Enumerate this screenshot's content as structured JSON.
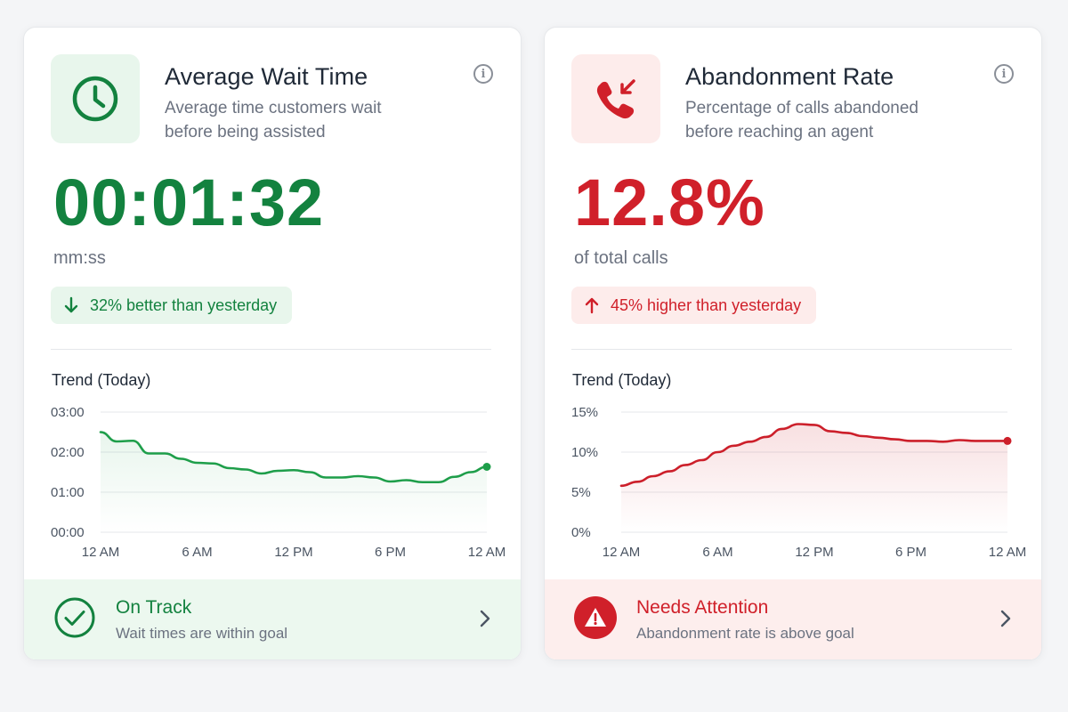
{
  "colors": {
    "green": "#13823f",
    "green_line": "#1e9e4a",
    "green_bg": "#e8f6ec",
    "red": "#d0202a",
    "red_line": "#cc1f2a",
    "red_bg": "#fdeceb"
  },
  "cards": [
    {
      "icon": "clock-icon",
      "title": "Average Wait Time",
      "subtitle": "Average time customers wait before being assisted",
      "value": "00:01:32",
      "unit": "mm:ss",
      "delta_icon": "arrow-down-icon",
      "delta_text": "32% better than yesterday",
      "trend_title": "Trend (Today)",
      "status_icon": "check-circle-icon",
      "status_title": "On Track",
      "status_sub": "Wait times are within goal"
    },
    {
      "icon": "phone-missed-icon",
      "title": "Abandonment Rate",
      "subtitle": "Percentage of calls abandoned before reaching an agent",
      "value": "12.8%",
      "unit": "of total calls",
      "delta_icon": "arrow-up-icon",
      "delta_text": "45% higher than yesterday",
      "trend_title": "Trend (Today)",
      "status_icon": "warning-icon",
      "status_title": "Needs Attention",
      "status_sub": "Abandonment rate is above goal"
    }
  ],
  "chart_data": [
    {
      "type": "line",
      "title": "Trend (Today)",
      "x_ticks": [
        "12 AM",
        "6 AM",
        "12 PM",
        "6 PM",
        "12 AM"
      ],
      "y_ticks": [
        "00:00",
        "01:00",
        "02:00",
        "03:00"
      ],
      "ylim": [
        0,
        180
      ],
      "x_hours": [
        0,
        1,
        2,
        3,
        4,
        5,
        6,
        7,
        8,
        9,
        10,
        11,
        12,
        13,
        14,
        15,
        16,
        17,
        18,
        19,
        20,
        21,
        22,
        23,
        24
      ],
      "values": [
        150,
        136,
        137,
        118,
        118,
        110,
        104,
        103,
        96,
        94,
        88,
        92,
        93,
        90,
        82,
        82,
        84,
        82,
        76,
        78,
        75,
        75,
        83,
        90,
        98
      ],
      "grid": true,
      "legend": "none"
    },
    {
      "type": "line",
      "title": "Trend (Today)",
      "x_ticks": [
        "12 AM",
        "6 AM",
        "12 PM",
        "6 PM",
        "12 AM"
      ],
      "y_ticks": [
        "0%",
        "5%",
        "10%",
        "15%"
      ],
      "ylim": [
        0,
        15
      ],
      "x_hours": [
        0,
        1,
        2,
        3,
        4,
        5,
        6,
        7,
        8,
        9,
        10,
        11,
        12,
        13,
        14,
        15,
        16,
        17,
        18,
        19,
        20,
        21,
        22,
        23,
        24
      ],
      "values": [
        5.8,
        6.3,
        7.0,
        7.6,
        8.4,
        9.0,
        10.0,
        10.8,
        11.3,
        11.9,
        12.9,
        13.5,
        13.4,
        12.6,
        12.4,
        12.0,
        11.8,
        11.6,
        11.4,
        11.4,
        11.3,
        11.5,
        11.4,
        11.4,
        11.4
      ],
      "grid": true,
      "legend": "none"
    }
  ]
}
